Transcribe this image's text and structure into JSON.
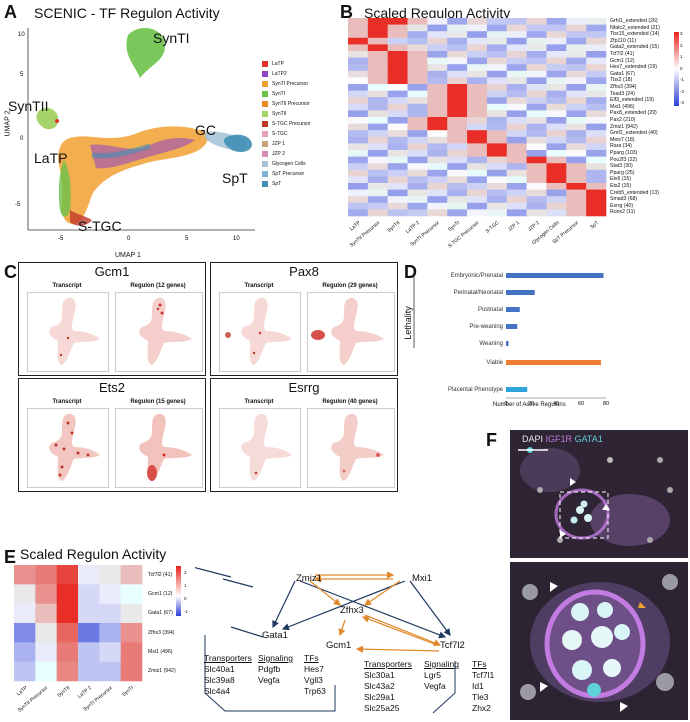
{
  "panels": {
    "A": {
      "label": "A",
      "title": "SCENIC - TF Regulon Activity",
      "xlabel": "UMAP 1",
      "ylabel": "UMAP 2",
      "xticks": [
        "-5",
        "0",
        "5",
        "10"
      ],
      "yticks": [
        "10",
        "5",
        "0",
        "-5"
      ],
      "clusters": {
        "syntI": "SynTI",
        "syntII": "SynTII",
        "gc": "GC",
        "latp": "LaTP",
        "spt": "SpT",
        "stgc": "S-TGC"
      },
      "legend": [
        {
          "name": "LaTP",
          "color": "#e5312a"
        },
        {
          "name": "LaTP2",
          "color": "#8e44c8"
        },
        {
          "name": "SynTI Precursor",
          "color": "#f0a030"
        },
        {
          "name": "SynTI",
          "color": "#6cc24a"
        },
        {
          "name": "SynTII Precursor",
          "color": "#ea8a22"
        },
        {
          "name": "SynTII",
          "color": "#a6d46a"
        },
        {
          "name": "S-TGC Precursor",
          "color": "#c0392b"
        },
        {
          "name": "S-TGC",
          "color": "#e8a2b8"
        },
        {
          "name": "JZP 1",
          "color": "#c8a27a"
        },
        {
          "name": "JZP 2",
          "color": "#d98cb3"
        },
        {
          "name": "Glycogen Cells",
          "color": "#a9c4d8"
        },
        {
          "name": "SpT Precursor",
          "color": "#7fb3d5"
        },
        {
          "name": "SpT",
          "color": "#3f8fb5"
        }
      ]
    },
    "B": {
      "label": "B",
      "title": "Scaled Regulon Activity",
      "rows": [
        "Grhl1_extended (26)",
        "Nfatc2_extended (21)",
        "Tbx15_extended (14)",
        "Zfp110 (11)",
        "Gata2_extended (15)",
        "Tcf7l2 (41)",
        "Gcm1 (12)",
        "Hes7_extended (19)",
        "Gata1 (67)",
        "Tbx2 (18)",
        "Zfhx3 (394)",
        "Tead3 (24)",
        "Elf3_extended (19)",
        "Mxi1 (496)",
        "Pax8_extended (29)",
        "Pax2 (210)",
        "Zmiz1 (942)",
        "Gmf2_extended (40)",
        "Meis7 (18)",
        "Rara (34)",
        "Pparg (103)",
        "Pou2f3 (22)",
        "Stat3 (30)",
        "Pparg (25)",
        "Etv6 (15)",
        "Ets2 (15)",
        "Creb5_extended (13)",
        "Smad3 (68)",
        "Esrrg (40)",
        "Runx2 (11)"
      ],
      "cols": [
        "LaTP",
        "SynTII Precursor",
        "SynTII",
        "LaTP 2",
        "SynTI Precursor",
        "SynTI",
        "S-TGC Precursor",
        "S-TGC",
        "JZP 1",
        "JZP 2",
        "Glycogen Cells",
        "SpT Precursor",
        "SpT"
      ],
      "scale": [
        "3",
        "2",
        "1",
        "0",
        "-1",
        "-2",
        "-3"
      ]
    },
    "C": {
      "label": "C",
      "genes": [
        {
          "name": "Gcm1",
          "transcript": "Transcript",
          "regulon": "Regulon (12 genes)"
        },
        {
          "name": "Pax8",
          "transcript": "Transcript",
          "regulon": "Regulon (29 genes)"
        },
        {
          "name": "Ets2",
          "transcript": "Transcript",
          "regulon": "Regulon (15 genes)"
        },
        {
          "name": "Esrrg",
          "transcript": "Transcript",
          "regulon": "Regulon (40 genes)"
        }
      ]
    },
    "D": {
      "label": "D",
      "group_label": "Lethality",
      "xlabel": "Number of Active Regulons",
      "xticks": [
        "0",
        "20",
        "40",
        "60",
        "80"
      ]
    },
    "E": {
      "label": "E",
      "title": "Scaled Regulon Activity",
      "rows": [
        "Tcf7l2 (41)",
        "Gcm1 (12)",
        "Gata1 (67)",
        "Zfhx3 (394)",
        "Mxi1 (496)",
        "Zmiz1 (942)"
      ],
      "cols": [
        "LaTP",
        "SynTII Precursor",
        "SynTII",
        "LaTP 2",
        "SynTI Precursor",
        "SynTI"
      ],
      "scale": [
        "2",
        "1",
        "0",
        "-1"
      ],
      "network": {
        "nodes": {
          "zmiz1": "Zmiz1",
          "mxi1": "Mxi1",
          "zfhx3": "Zfhx3",
          "gcm1": "Gcm1",
          "gata1": "Gata1",
          "tcf7l2": "Tcf7l2"
        },
        "gata1_box": {
          "transporters_h": "Transporters",
          "signaling_h": "Signaling",
          "tfs_h": "TFs",
          "transporters": [
            "Slc40a1",
            "Slc39a8",
            "Slc4a4"
          ],
          "signaling": [
            "Pdgfb",
            "Vegfa"
          ],
          "tfs": [
            "Hes7",
            "Vgll3",
            "Trp63"
          ]
        },
        "tcf7l2_box": {
          "transporters_h": "Transporters",
          "signaling_h": "Signaling",
          "tfs_h": "TFs",
          "transporters": [
            "Slc30a1",
            "Slc43a2",
            "Slc29a1",
            "Slc25a25"
          ],
          "signaling": [
            "Lgr5",
            "Vegfa"
          ],
          "tfs": [
            "Tcf7l1",
            "Id1",
            "Tle3",
            "Zhx2"
          ]
        }
      }
    },
    "F": {
      "label": "F",
      "stain_dapi": "DAPI",
      "stain_igf1r": "IGF1R",
      "stain_gata1": "GATA1",
      "colors": {
        "dapi": "#e8e8e8",
        "igf1r": "#c27be0",
        "gata1": "#5fd0d8"
      }
    }
  },
  "chart_data": [
    {
      "type": "bar",
      "title": "",
      "xlabel": "Number of Active Regulons",
      "ylabel": "Lethality",
      "categories": [
        "Embryonic/Prenatal",
        "Perinatal/Neonatal",
        "Postnatal",
        "Pre-weaning",
        "Weaning",
        "Viable",
        "Placental Phenotype"
      ],
      "values": [
        78,
        23,
        11,
        9,
        2,
        76,
        17
      ],
      "colors": [
        "#4472c4",
        "#4472c4",
        "#4472c4",
        "#4472c4",
        "#4472c4",
        "#ed7d31",
        "#2ea3d9"
      ],
      "xlim": [
        0,
        80
      ],
      "orientation": "horizontal"
    }
  ]
}
